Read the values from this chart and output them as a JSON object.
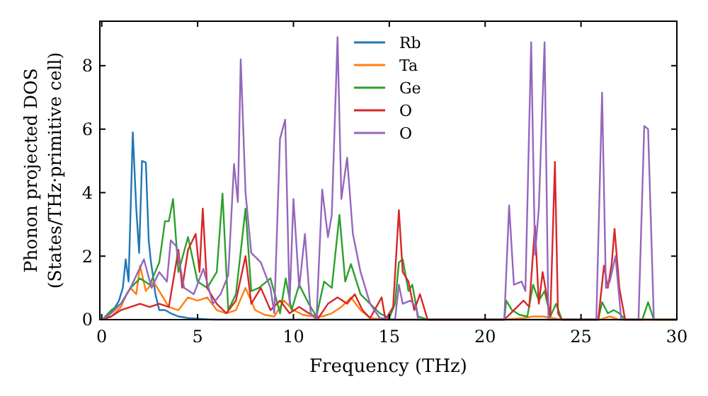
{
  "chart_data": {
    "type": "line",
    "xlabel": "Frequency (THz)",
    "ylabel": "Phonon projected DOS\n(States/THz·primitive cell)",
    "xlim": [
      -0.1,
      30
    ],
    "ylim": [
      0,
      9.4
    ],
    "xticks": [
      0,
      5,
      10,
      15,
      20,
      25,
      30
    ],
    "yticks": [
      0,
      2,
      4,
      6,
      8
    ],
    "grid": false,
    "legend": "top",
    "marker": "none",
    "line_style": "solid",
    "series": [
      {
        "name": "Rb",
        "color": "#1f77b4",
        "x": [
          0,
          0.3,
          0.6,
          0.9,
          1.1,
          1.25,
          1.4,
          1.62,
          1.8,
          1.95,
          2.1,
          2.3,
          2.45,
          2.55,
          2.8,
          3.0,
          3.3,
          3.6,
          4.0,
          4.5,
          5.0,
          5.5,
          6.0,
          30
        ],
        "values": [
          0,
          0.1,
          0.3,
          0.6,
          1.0,
          1.9,
          1.2,
          5.9,
          3.5,
          2.1,
          5.0,
          4.95,
          2.5,
          1.9,
          0.8,
          0.3,
          0.3,
          0.2,
          0.1,
          0.05,
          0.03,
          0.01,
          0,
          0
        ]
      },
      {
        "name": "Ta",
        "color": "#ff7f0e",
        "x": [
          0,
          0.5,
          1.0,
          1.3,
          1.5,
          1.8,
          2.0,
          2.3,
          2.7,
          3.0,
          3.5,
          4.0,
          4.5,
          5.0,
          5.5,
          6.0,
          6.5,
          7.0,
          7.5,
          8.0,
          8.5,
          9.0,
          9.5,
          10.0,
          10.5,
          11.0,
          11.5,
          12.0,
          12.5,
          13.0,
          13.5,
          14.0,
          14.5,
          15.0,
          21.0,
          22.0,
          22.5,
          23.0,
          23.5,
          24.0,
          26.0,
          26.5,
          27.0,
          30
        ],
        "values": [
          0,
          0.1,
          0.4,
          0.8,
          1.0,
          0.8,
          1.7,
          0.9,
          1.2,
          0.9,
          0.4,
          0.3,
          0.7,
          0.6,
          0.7,
          0.3,
          0.2,
          0.3,
          1.0,
          0.3,
          0.15,
          0.1,
          0.6,
          0.3,
          0.15,
          0.1,
          0.1,
          0.2,
          0.4,
          0.7,
          0.3,
          0.05,
          0.02,
          0,
          0,
          0.05,
          0.1,
          0.1,
          0.05,
          0,
          0,
          0.1,
          0,
          0
        ]
      },
      {
        "name": "Ge",
        "color": "#2ca02c",
        "x": [
          0.1,
          0.5,
          1.0,
          1.5,
          2.0,
          2.5,
          3.0,
          3.3,
          3.5,
          3.72,
          4.0,
          4.5,
          5.0,
          5.5,
          6.0,
          6.3,
          6.6,
          7.0,
          7.5,
          7.8,
          8.2,
          8.8,
          9.3,
          9.6,
          9.9,
          10.3,
          10.8,
          11.2,
          11.6,
          12.0,
          12.4,
          12.7,
          13.0,
          13.5,
          14.0,
          14.5,
          15.0,
          15.3,
          15.5,
          15.7,
          16.0,
          16.2,
          16.5,
          17.0,
          21.0,
          21.1,
          21.4,
          21.8,
          22.2,
          22.5,
          22.8,
          23.1,
          23.4,
          23.7,
          24.0,
          25.9,
          26.1,
          26.4,
          26.7,
          27.0,
          27.3,
          28.2,
          28.5,
          28.8,
          30
        ],
        "values": [
          0.05,
          0.3,
          0.5,
          1.0,
          1.3,
          1.1,
          1.8,
          3.1,
          3.1,
          3.8,
          1.5,
          2.6,
          1.2,
          1.0,
          1.5,
          3.97,
          0.3,
          0.8,
          3.5,
          0.9,
          1.0,
          1.3,
          0.2,
          1.3,
          0.3,
          1.1,
          0.5,
          0.1,
          1.2,
          1.0,
          3.3,
          1.2,
          1.75,
          0.8,
          0.5,
          0.2,
          0.05,
          0.5,
          1.8,
          1.9,
          0.9,
          1.1,
          0.1,
          0,
          0,
          0.6,
          0.3,
          0.15,
          0.1,
          1.1,
          0.6,
          0.9,
          0.1,
          0.5,
          0,
          0,
          0.55,
          0.2,
          0.3,
          0.2,
          0,
          0,
          0.55,
          0,
          0
        ]
      },
      {
        "name": "O",
        "color": "#d62728",
        "x": [
          0,
          0.5,
          1.0,
          1.5,
          2.0,
          2.5,
          3.0,
          3.5,
          4.0,
          4.2,
          4.5,
          4.9,
          5.1,
          5.27,
          5.5,
          6.0,
          6.5,
          7.0,
          7.5,
          7.8,
          8.3,
          8.8,
          9.3,
          9.8,
          10.3,
          10.8,
          11.3,
          11.8,
          12.3,
          12.8,
          13.2,
          13.6,
          14.0,
          14.6,
          14.8,
          15.2,
          15.5,
          15.7,
          16.0,
          16.3,
          16.6,
          17.0,
          21.0,
          21.5,
          22.0,
          22.3,
          22.6,
          22.8,
          23.0,
          23.2,
          23.4,
          23.64,
          23.8,
          24.0,
          25.9,
          26.2,
          26.4,
          26.6,
          26.75,
          27.0,
          27.3,
          30
        ],
        "values": [
          0,
          0.1,
          0.3,
          0.4,
          0.5,
          0.4,
          0.5,
          0.4,
          2.2,
          1.0,
          2.2,
          2.7,
          1.5,
          3.5,
          1.0,
          0.5,
          0.2,
          0.6,
          2.0,
          0.5,
          1.0,
          0.3,
          0.6,
          0.2,
          0.4,
          0.2,
          0.05,
          0.5,
          0.7,
          0.5,
          0.8,
          0.3,
          0.05,
          0.7,
          0,
          0.4,
          3.45,
          1.5,
          1.2,
          0.3,
          0.8,
          0,
          0,
          0.3,
          0.6,
          0.4,
          2.96,
          0.5,
          1.5,
          0.8,
          0.1,
          4.97,
          0.2,
          0,
          0,
          1.7,
          1.0,
          1.75,
          2.86,
          1.0,
          0,
          0
        ]
      },
      {
        "name": "O",
        "color": "#9467bd",
        "x": [
          0,
          0.5,
          1.0,
          1.5,
          2.2,
          2.6,
          3.0,
          3.4,
          3.6,
          3.9,
          4.3,
          4.8,
          5.3,
          5.8,
          6.2,
          6.6,
          6.9,
          7.1,
          7.25,
          7.5,
          7.8,
          8.3,
          8.8,
          9.0,
          9.3,
          9.57,
          9.8,
          10.0,
          10.3,
          10.6,
          10.9,
          11.2,
          11.5,
          11.8,
          12.0,
          12.3,
          12.5,
          12.8,
          13.1,
          13.5,
          14.0,
          14.5,
          15.3,
          15.5,
          15.7,
          16.1,
          16.4,
          16.5,
          21.0,
          21.25,
          21.5,
          21.9,
          22.1,
          22.4,
          22.6,
          22.8,
          23.1,
          23.3,
          25.8,
          26.1,
          26.3,
          26.5,
          26.8,
          27.1,
          28.0,
          28.3,
          28.5,
          28.8
        ],
        "values": [
          0,
          0.2,
          0.5,
          1.0,
          1.9,
          1.0,
          1.5,
          1.2,
          2.5,
          2.3,
          1.0,
          0.8,
          1.6,
          0.5,
          0.8,
          1.4,
          4.9,
          3.7,
          8.2,
          4.0,
          2.1,
          1.8,
          1.0,
          0.2,
          5.7,
          6.3,
          0.5,
          3.8,
          1.0,
          2.7,
          0.2,
          0,
          4.1,
          2.6,
          3.3,
          8.9,
          3.8,
          5.1,
          2.7,
          1.5,
          0.5,
          0.05,
          0,
          1.1,
          0.5,
          0.6,
          0.4,
          0,
          0,
          3.6,
          1.1,
          1.2,
          0.9,
          8.74,
          2.04,
          3.5,
          8.74,
          0,
          0,
          7.15,
          1.0,
          1.2,
          2.0,
          0,
          0,
          6.1,
          6.0,
          0
        ]
      }
    ]
  }
}
